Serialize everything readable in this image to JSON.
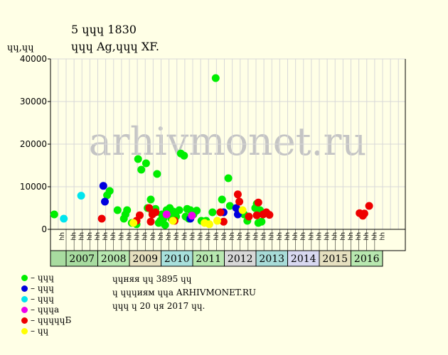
{
  "header": {
    "title_line1": "5 ɥɥɥ 1830",
    "title_line2": "ɥɥɥ Ag,ɥɥɥ XF."
  },
  "chart_data": {
    "type": "scatter",
    "title": "5 ɥɥɥ 1830",
    "subtitle": "ɥɥɥ Ag,ɥɥɥ XF.",
    "ylabel": "ɥɥ,ɥɥ",
    "ylim": [
      0,
      40000
    ],
    "yticks": [
      0,
      10000,
      20000,
      30000,
      40000
    ],
    "grid": true,
    "watermark": "arhivmonet.ru",
    "x_axis": {
      "quarter_labels": [
        "ɥɥ",
        "ɥɥ",
        "ɥɥ",
        "ɥɥ"
      ],
      "years": [
        "2007",
        "2008",
        "2009",
        "2010",
        "2011",
        "2012",
        "2013",
        "2014",
        "2015",
        "2016"
      ]
    },
    "series": [
      {
        "name": "– ɥɥɥ",
        "color": "#00ee00",
        "points": [
          [
            2006.25,
            3500
          ],
          [
            2007.92,
            8000
          ],
          [
            2008.0,
            9000
          ],
          [
            2008.25,
            4500
          ],
          [
            2008.45,
            2500
          ],
          [
            2008.5,
            3500
          ],
          [
            2008.55,
            4500
          ],
          [
            2008.7,
            1500
          ],
          [
            2008.85,
            1200
          ],
          [
            2008.9,
            16500
          ],
          [
            2009.0,
            14000
          ],
          [
            2009.15,
            15500
          ],
          [
            2009.2,
            5000
          ],
          [
            2009.3,
            7000
          ],
          [
            2009.35,
            4000
          ],
          [
            2009.45,
            4800
          ],
          [
            2009.5,
            13000
          ],
          [
            2009.55,
            1500
          ],
          [
            2009.6,
            2000
          ],
          [
            2009.65,
            3500
          ],
          [
            2009.7,
            2500
          ],
          [
            2009.75,
            1000
          ],
          [
            2009.8,
            4500
          ],
          [
            2009.9,
            5000
          ],
          [
            2009.95,
            2500
          ],
          [
            2010.0,
            4200
          ],
          [
            2010.1,
            3000
          ],
          [
            2010.2,
            4500
          ],
          [
            2010.25,
            17800
          ],
          [
            2010.35,
            17300
          ],
          [
            2010.4,
            3000
          ],
          [
            2010.45,
            4800
          ],
          [
            2010.5,
            2500
          ],
          [
            2010.55,
            4500
          ],
          [
            2010.65,
            3500
          ],
          [
            2010.75,
            4400
          ],
          [
            2010.9,
            2000
          ],
          [
            2011.05,
            2000
          ],
          [
            2011.25,
            4000
          ],
          [
            2011.35,
            35500
          ],
          [
            2011.55,
            7000
          ],
          [
            2011.75,
            12000
          ],
          [
            2011.8,
            5500
          ],
          [
            2012.25,
            3500
          ],
          [
            2012.35,
            2000
          ],
          [
            2012.6,
            5000
          ],
          [
            2012.65,
            6000
          ],
          [
            2012.7,
            1500
          ],
          [
            2012.75,
            4500
          ],
          [
            2012.8,
            1800
          ]
        ]
      },
      {
        "name": "– ɥɥɥ",
        "color": "#0000dd",
        "points": [
          [
            2007.8,
            10200
          ],
          [
            2007.85,
            6500
          ],
          [
            2010.55,
            2500
          ],
          [
            2011.6,
            4000
          ],
          [
            2012.0,
            5000
          ],
          [
            2012.05,
            3500
          ]
        ]
      },
      {
        "name": "– ɥɥɥ",
        "color": "#00e5ee",
        "points": [
          [
            2006.55,
            2500
          ],
          [
            2007.1,
            7900
          ]
        ]
      },
      {
        "name": "– ɥɥɥa",
        "color": "#ee00ee",
        "points": [
          [
            2009.8,
            3500
          ],
          [
            2010.6,
            3200
          ]
        ]
      },
      {
        "name": "– ɥɥɥɥɥБ",
        "color": "#ee0000",
        "points": [
          [
            2007.75,
            2500
          ],
          [
            2008.85,
            2000
          ],
          [
            2008.95,
            3300
          ],
          [
            2009.25,
            5000
          ],
          [
            2009.3,
            1800
          ],
          [
            2009.35,
            3500
          ],
          [
            2009.45,
            4000
          ],
          [
            2010.05,
            2000
          ],
          [
            2011.5,
            4000
          ],
          [
            2011.6,
            1800
          ],
          [
            2012.05,
            8200
          ],
          [
            2012.1,
            6500
          ],
          [
            2012.4,
            3000
          ],
          [
            2012.65,
            3300
          ],
          [
            2012.7,
            6300
          ],
          [
            2012.85,
            3500
          ],
          [
            2012.95,
            4000
          ],
          [
            2013.05,
            3400
          ],
          [
            2015.9,
            3800
          ],
          [
            2016.0,
            3200
          ],
          [
            2016.05,
            3700
          ],
          [
            2016.2,
            5500
          ]
        ]
      },
      {
        "name": "– ɥɥ",
        "color": "#ffff00",
        "points": [
          [
            2008.75,
            1500
          ],
          [
            2010.0,
            2000
          ],
          [
            2011.0,
            1500
          ],
          [
            2011.15,
            1200
          ],
          [
            2011.4,
            2000
          ],
          [
            2012.2,
            4500
          ]
        ]
      }
    ]
  },
  "notes": {
    "line1": "ɥɥняя ɥɥ 3895 ɥɥ",
    "line2": "ɥ ɥɥɥиям ɥɥa ARHIVMONET.RU",
    "line3": "ɥɥɥ ɥ 20 ɥя 2017 ɥɥ."
  }
}
